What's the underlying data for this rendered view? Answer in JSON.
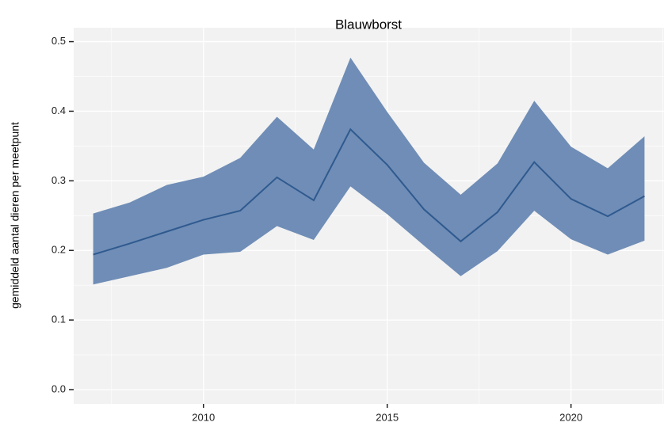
{
  "chart_data": {
    "type": "line",
    "title": "Blauwborst",
    "y_label": "gemiddeld aantal dieren per meetpunt",
    "x": [
      2007,
      2008,
      2009,
      2010,
      2011,
      2012,
      2013,
      2014,
      2015,
      2016,
      2017,
      2018,
      2019,
      2020,
      2021,
      2022
    ],
    "values": [
      0.194,
      0.21,
      0.227,
      0.244,
      0.257,
      0.305,
      0.272,
      0.374,
      0.323,
      0.259,
      0.213,
      0.255,
      0.327,
      0.274,
      0.249,
      0.278
    ],
    "lower": [
      0.151,
      0.163,
      0.175,
      0.194,
      0.198,
      0.235,
      0.215,
      0.292,
      0.252,
      0.207,
      0.163,
      0.199,
      0.257,
      0.216,
      0.194,
      0.214
    ],
    "upper": [
      0.253,
      0.269,
      0.294,
      0.306,
      0.333,
      0.392,
      0.345,
      0.477,
      0.399,
      0.326,
      0.28,
      0.325,
      0.415,
      0.349,
      0.318,
      0.364
    ],
    "color": "#2f5a8f",
    "band_color": "#6f8db6",
    "xlim": [
      2006.47,
      2022.53
    ],
    "xticks": [
      2010,
      2015,
      2020
    ],
    "xminorticks": [
      2007.5,
      2012.5,
      2017.5,
      2022.5
    ],
    "ylim": [
      -0.0205,
      0.52
    ],
    "yticks": [
      {
        "value": 0,
        "label": "0.0"
      },
      0.1,
      0.2,
      0.3,
      0.4,
      0.5
    ],
    "yminorticks": [
      0.05,
      0.15,
      0.25,
      0.35,
      0.45
    ],
    "grid": true
  }
}
